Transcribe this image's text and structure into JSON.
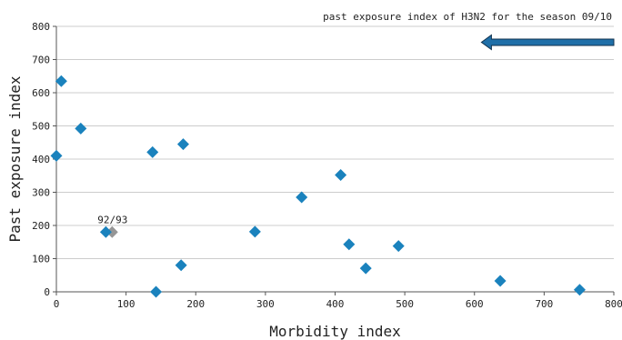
{
  "chart_data": {
    "type": "scatter",
    "title": "",
    "xlabel": "Morbidity index",
    "ylabel": "Past exposure index",
    "xlim": [
      0,
      800
    ],
    "ylim": [
      0,
      800
    ],
    "xticks": [
      0,
      100,
      200,
      300,
      400,
      500,
      600,
      700,
      800
    ],
    "yticks": [
      0,
      100,
      200,
      300,
      400,
      500,
      600,
      700,
      800
    ],
    "grid": "horizontal",
    "colors": {
      "points": "#1a82bd",
      "highlight": "#969696",
      "arrow": "#1f6fa8",
      "arrow_outline": "#10324e",
      "grid": "#cccccc",
      "axis": "#555555"
    },
    "series": [
      {
        "points": [
          {
            "x": 0,
            "y": 410
          },
          {
            "x": 7,
            "y": 635
          },
          {
            "x": 35,
            "y": 492
          },
          {
            "x": 71,
            "y": 180
          },
          {
            "x": 138,
            "y": 421
          },
          {
            "x": 143,
            "y": 0
          },
          {
            "x": 179,
            "y": 80
          },
          {
            "x": 182,
            "y": 445
          },
          {
            "x": 285,
            "y": 181
          },
          {
            "x": 352,
            "y": 285
          },
          {
            "x": 408,
            "y": 352
          },
          {
            "x": 420,
            "y": 143
          },
          {
            "x": 444,
            "y": 71
          },
          {
            "x": 491,
            "y": 138
          },
          {
            "x": 637,
            "y": 33
          },
          {
            "x": 751,
            "y": 6
          }
        ]
      }
    ],
    "highlight_point": {
      "x": 80,
      "y": 180,
      "label": "92/93"
    },
    "reference_arrow": {
      "label": "past exposure index of H3N2 for the season 09/10",
      "y": 752,
      "x_from": 800,
      "x_to": 610,
      "direction": "left"
    }
  }
}
